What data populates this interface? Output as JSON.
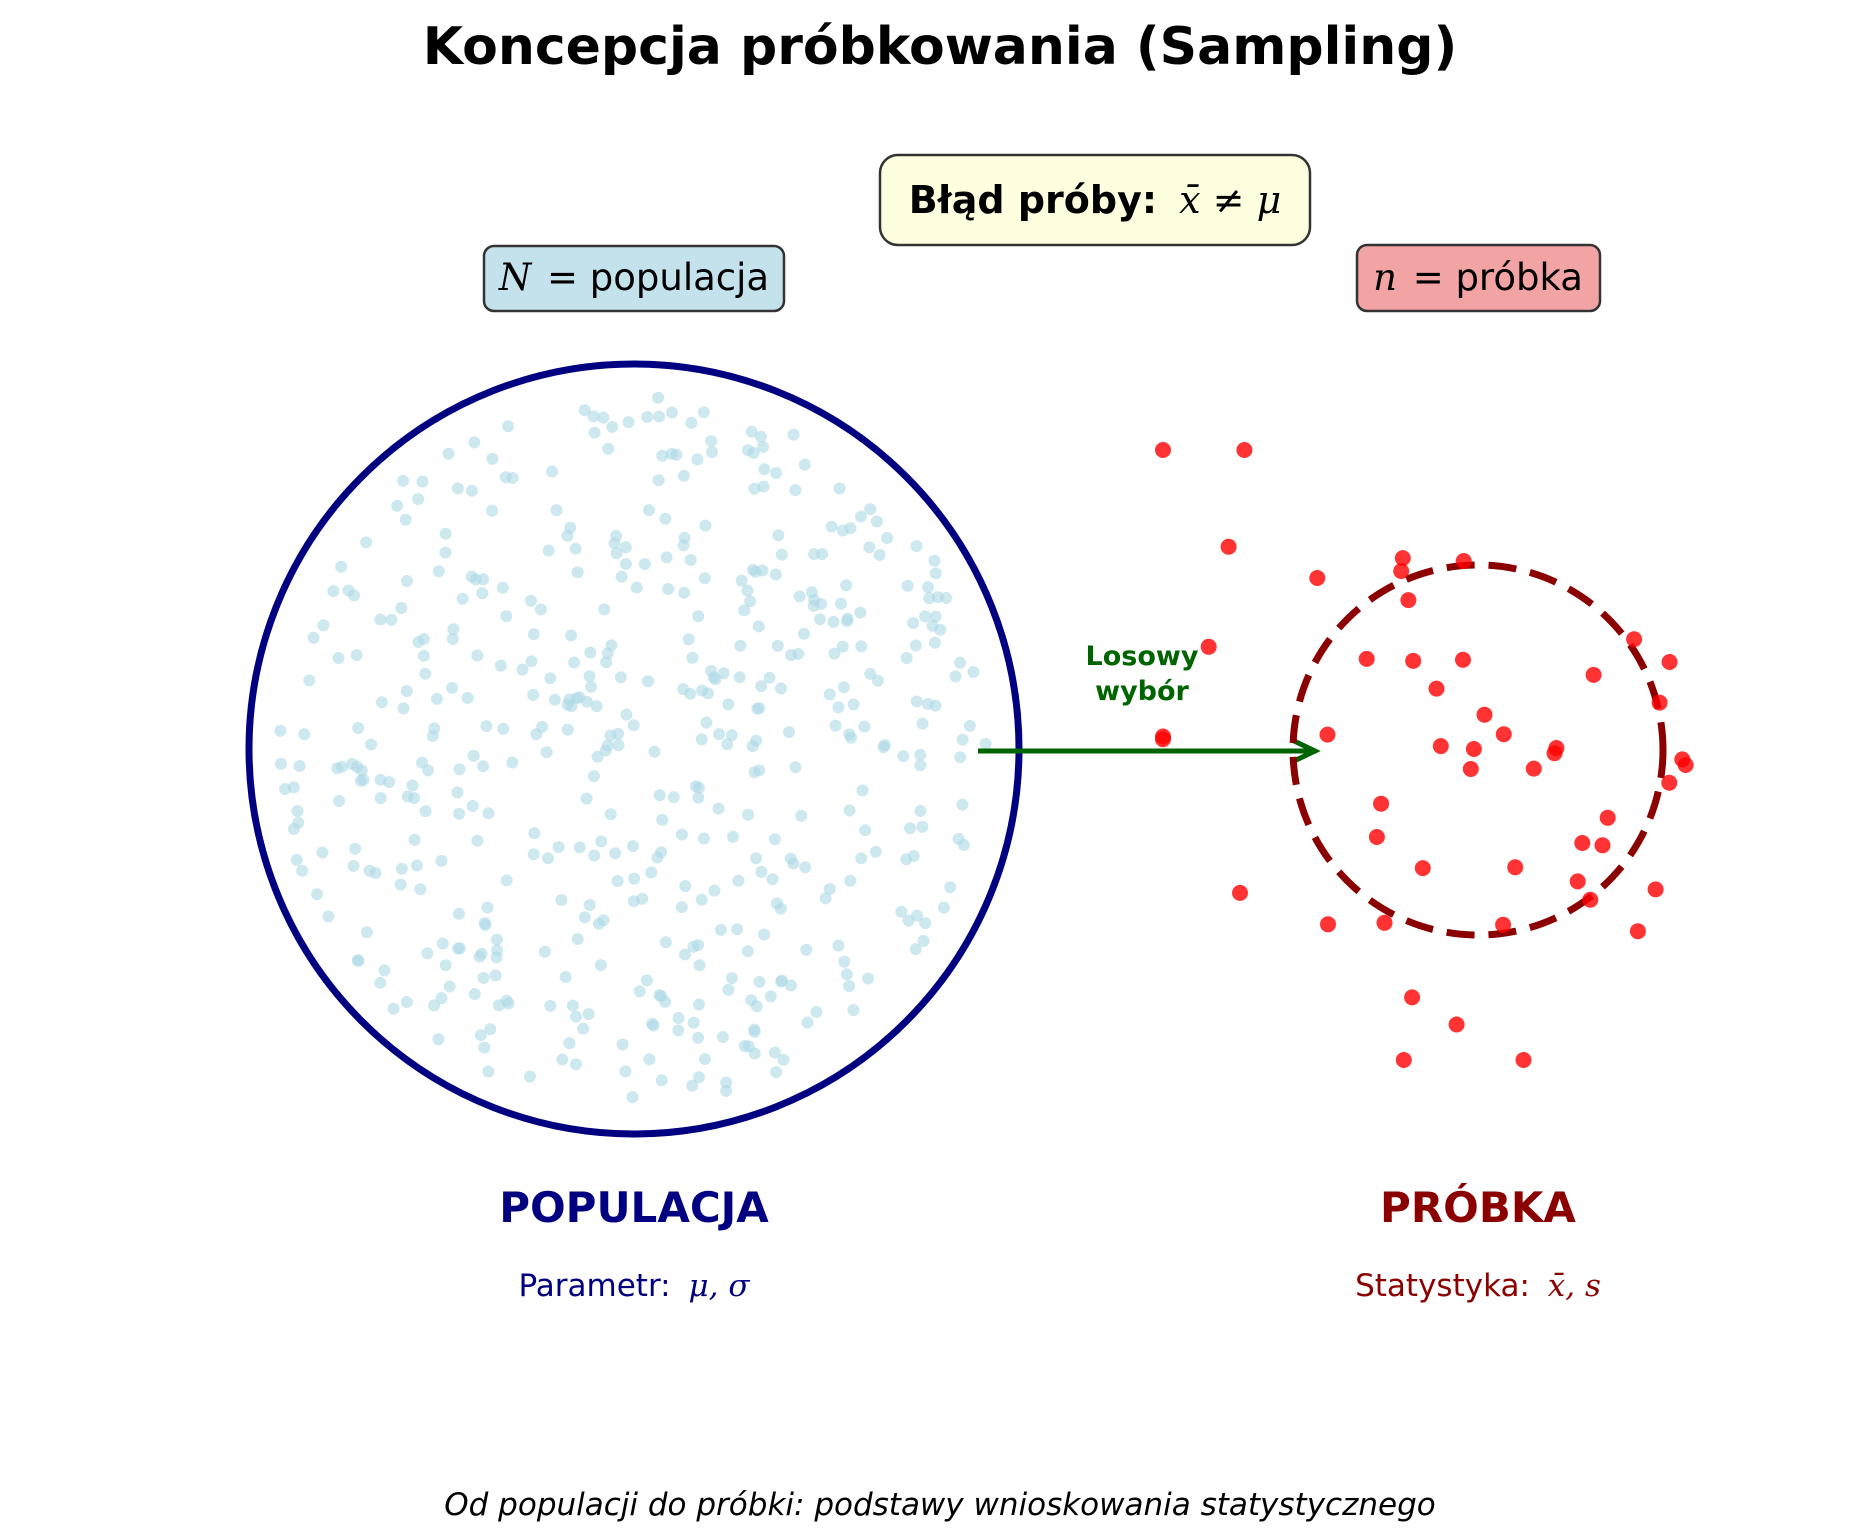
{
  "title": "Koncepcja próbkowania (Sampling)",
  "sampling_error": {
    "label": "Błąd próby:",
    "formula": "x̄ ≠ μ",
    "fill": "#ffffe0"
  },
  "population": {
    "box_symbol": "N",
    "box_text": "= populacja",
    "box_fill": "#c4e2ec",
    "heading": "POPULACJA",
    "param_label": "Parametr:",
    "param_formula": "μ, σ",
    "color": "#000080",
    "dot_color": "#add8e6"
  },
  "sample": {
    "box_symbol": "n",
    "box_text": "= próbka",
    "box_fill": "#f2a3a3",
    "heading": "PRÓBKA",
    "stat_label": "Statystyka:",
    "stat_formula": "x̄, s",
    "color": "#8b0000",
    "dot_color": "#ff0000"
  },
  "arrow": {
    "label_line1": "Losowy",
    "label_line2": "wybór",
    "color": "#006400"
  },
  "footer": "Od populacji do próbki: podstawy wnioskowania statystycznego"
}
